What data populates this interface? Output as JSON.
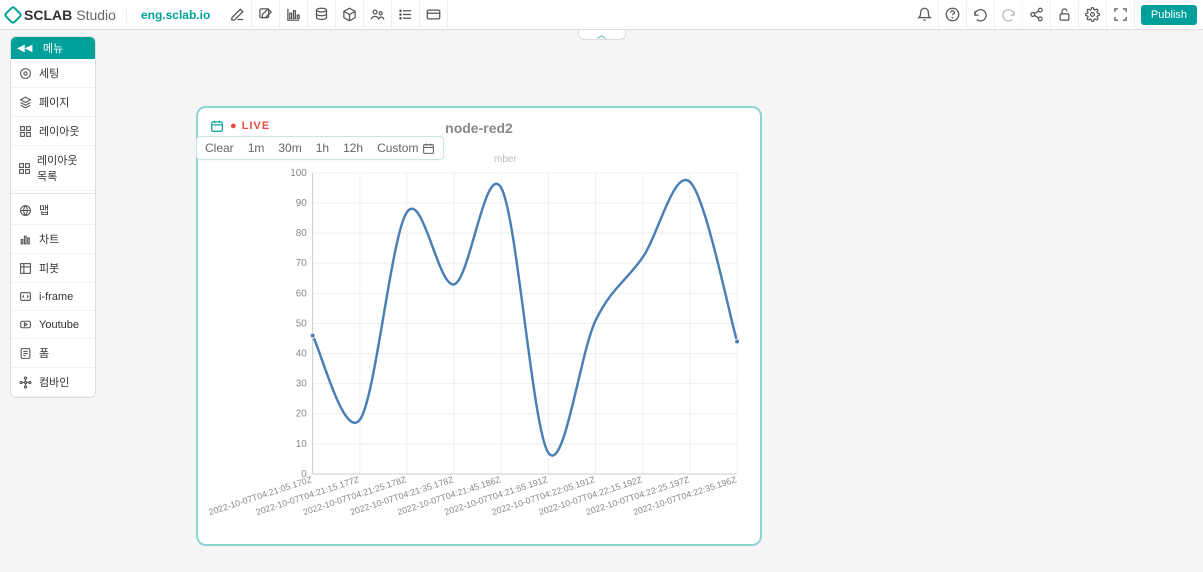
{
  "brand": {
    "name": "SCLAB",
    "suffix": "Studio"
  },
  "site": "eng.sclab.io",
  "publish_label": "Publish",
  "sidebar": {
    "header": "메뉴",
    "items": [
      {
        "label": "세팅"
      },
      {
        "label": "페이지"
      },
      {
        "label": "레이아웃"
      },
      {
        "label": "레이아웃 목록"
      },
      {
        "label": "맵"
      },
      {
        "label": "차트"
      },
      {
        "label": "피봇"
      },
      {
        "label": "i-frame"
      },
      {
        "label": "Youtube"
      },
      {
        "label": "폼"
      },
      {
        "label": "컴바인"
      }
    ]
  },
  "chart": {
    "type": "line",
    "title": "node-red2",
    "live_label": "LIVE",
    "legend": "mber",
    "range_buttons": [
      "Clear",
      "1m",
      "30m",
      "1h",
      "12h",
      "Custom"
    ],
    "ylim": [
      0,
      100
    ],
    "ytick_step": 10,
    "series_color": "#4a7fb5",
    "grid_color": "#eeeeee",
    "axis_color": "#cccccc",
    "background_color": "#ffffff",
    "line_width": 2.5,
    "marker_radius": 2.5,
    "x_labels": [
      "2022-10-07T04:21:05.170Z",
      "2022-10-07T04:21:15.177Z",
      "2022-10-07T04:21:25.178Z",
      "2022-10-07T04:21:35.178Z",
      "2022-10-07T04:21:45.186Z",
      "2022-10-07T04:21:55.191Z",
      "2022-10-07T04:22:05.191Z",
      "2022-10-07T04:22:15.192Z",
      "2022-10-07T04:22:25.197Z",
      "2022-10-07T04:22:35.196Z"
    ],
    "values": [
      46,
      18,
      87,
      63,
      95,
      7,
      51,
      72,
      97,
      44
    ]
  }
}
